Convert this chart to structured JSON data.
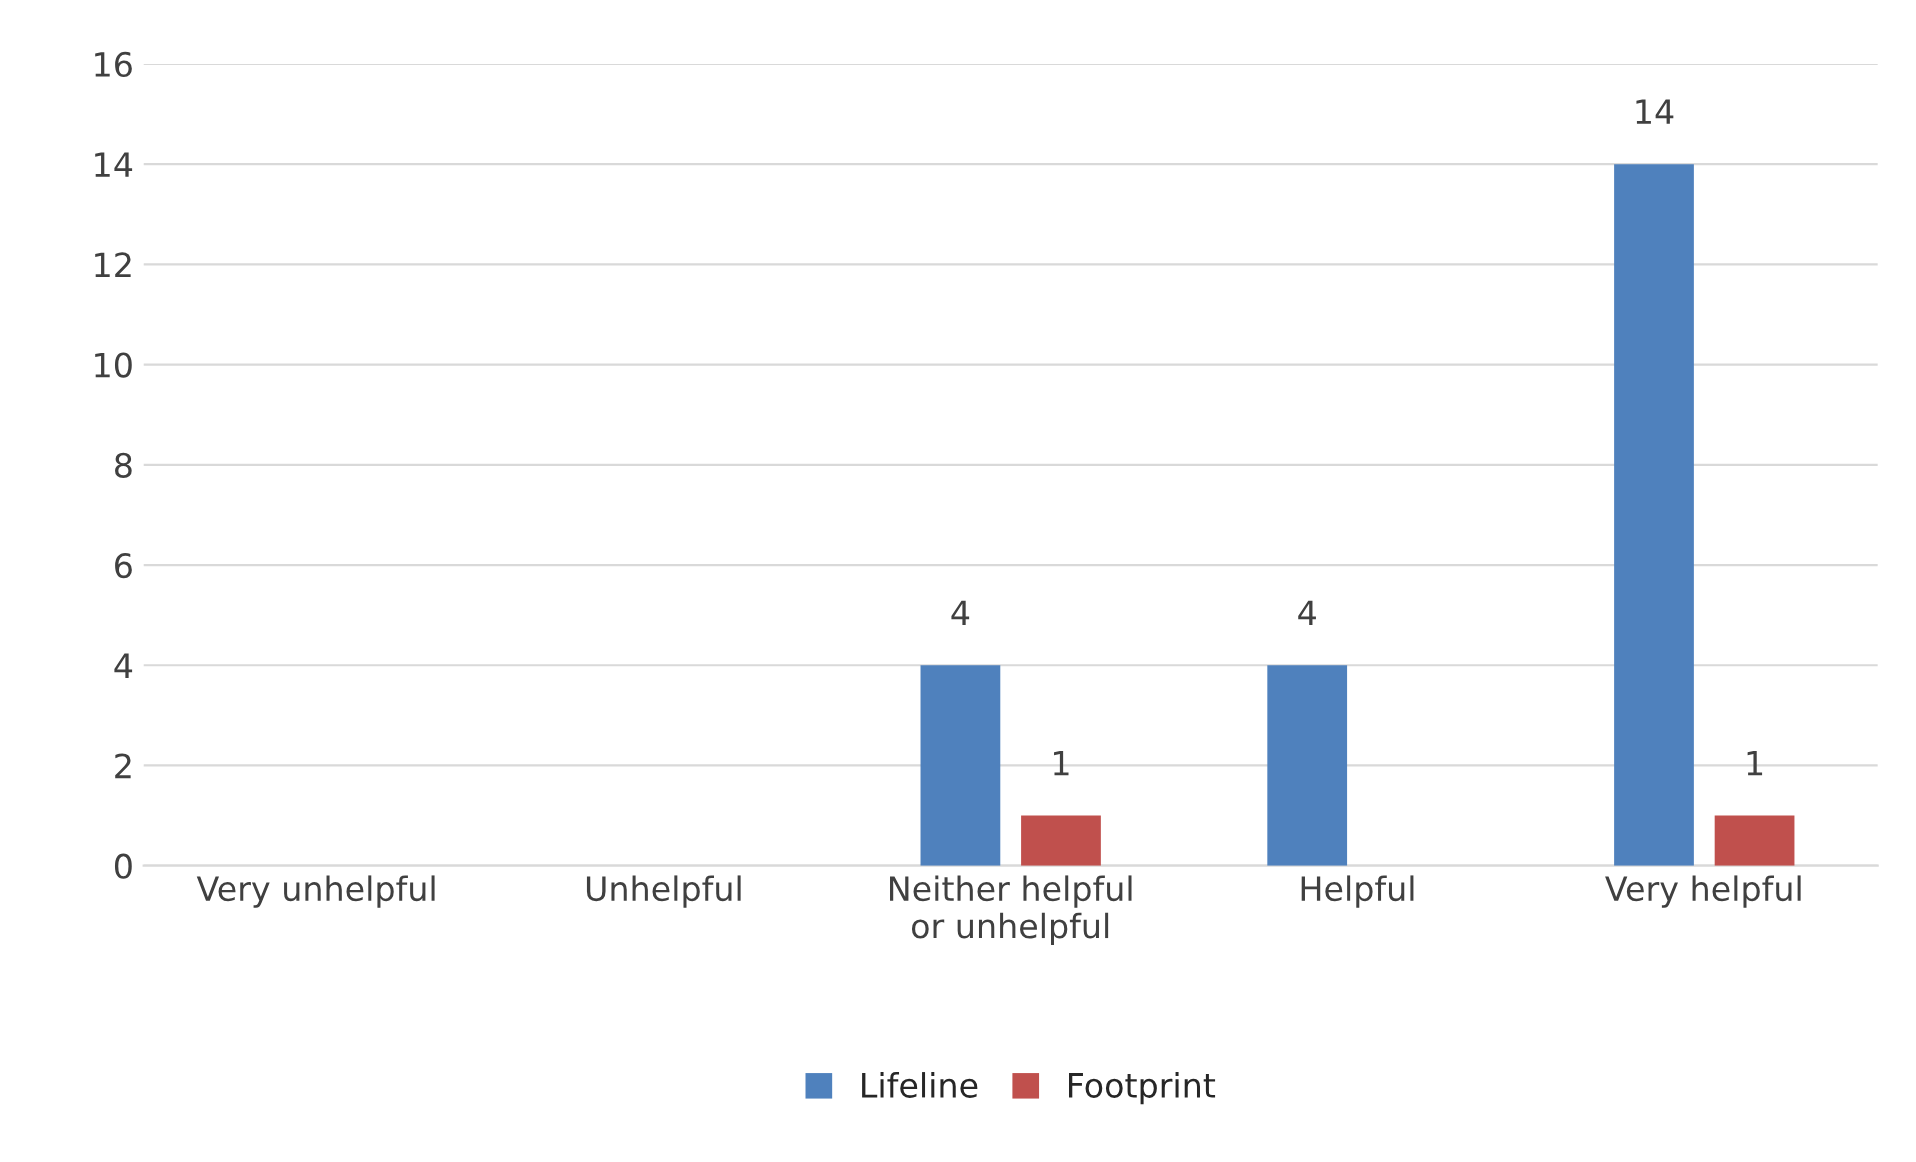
{
  "chart_data": {
    "type": "bar",
    "categories": [
      "Very unhelpful",
      "Unhelpful",
      "Neither helpful\nor unhelpful",
      "Helpful",
      "Very helpful"
    ],
    "series": [
      {
        "name": "Lifeline",
        "color": "#4f81bd",
        "values": [
          0,
          0,
          4,
          4,
          14
        ],
        "value_labels": [
          null,
          null,
          "4",
          "4",
          "14"
        ]
      },
      {
        "name": "Footprint",
        "color": "#c0504d",
        "values": [
          0,
          0,
          1,
          0,
          1
        ],
        "value_labels": [
          null,
          null,
          "1",
          null,
          "1"
        ]
      }
    ],
    "ylim": [
      0,
      16
    ],
    "yticks": [
      0,
      2,
      4,
      6,
      8,
      10,
      12,
      14,
      16
    ],
    "grid": "y",
    "legend": "bottom"
  }
}
